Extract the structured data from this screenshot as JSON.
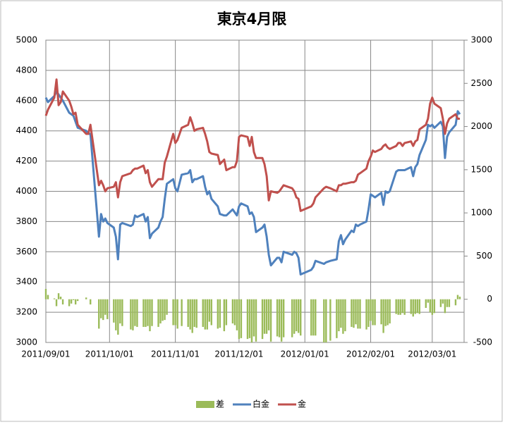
{
  "chart_data": {
    "type": "combo",
    "title": "東京4月限",
    "x": [
      "2011/09/01",
      "2011/09/02",
      "2011/09/05",
      "2011/09/06",
      "2011/09/07",
      "2011/09/08",
      "2011/09/09",
      "2011/09/12",
      "2011/09/13",
      "2011/09/14",
      "2011/09/15",
      "2011/09/16",
      "2011/09/20",
      "2011/09/21",
      "2011/09/22",
      "2011/09/26",
      "2011/09/27",
      "2011/09/28",
      "2011/09/29",
      "2011/09/30",
      "2011/10/03",
      "2011/10/04",
      "2011/10/05",
      "2011/10/06",
      "2011/10/07",
      "2011/10/11",
      "2011/10/12",
      "2011/10/13",
      "2011/10/14",
      "2011/10/17",
      "2011/10/18",
      "2011/10/19",
      "2011/10/20",
      "2011/10/21",
      "2011/10/24",
      "2011/10/25",
      "2011/10/26",
      "2011/10/27",
      "2011/10/28",
      "2011/10/31",
      "2011/11/01",
      "2011/11/02",
      "2011/11/04",
      "2011/11/07",
      "2011/11/08",
      "2011/11/09",
      "2011/11/10",
      "2011/11/11",
      "2011/11/14",
      "2011/11/15",
      "2011/11/16",
      "2011/11/17",
      "2011/11/18",
      "2011/11/21",
      "2011/11/22",
      "2011/11/24",
      "2011/11/25",
      "2011/11/28",
      "2011/11/29",
      "2011/11/30",
      "2011/12/01",
      "2011/12/02",
      "2011/12/05",
      "2011/12/06",
      "2011/12/07",
      "2011/12/08",
      "2011/12/09",
      "2011/12/12",
      "2011/12/13",
      "2011/12/14",
      "2011/12/15",
      "2011/12/16",
      "2011/12/19",
      "2011/12/20",
      "2011/12/21",
      "2011/12/22",
      "2011/12/26",
      "2011/12/27",
      "2011/12/28",
      "2011/12/29",
      "2011/12/30",
      "2012/01/04",
      "2012/01/05",
      "2012/01/06",
      "2012/01/10",
      "2012/01/11",
      "2012/01/13",
      "2012/01/16",
      "2012/01/17",
      "2012/01/18",
      "2012/01/19",
      "2012/01/20",
      "2012/01/23",
      "2012/01/24",
      "2012/01/25",
      "2012/01/26",
      "2012/01/27",
      "2012/01/30",
      "2012/01/31",
      "2012/02/01",
      "2012/02/02",
      "2012/02/03",
      "2012/02/06",
      "2012/02/07",
      "2012/02/08",
      "2012/02/09",
      "2012/02/10",
      "2012/02/13",
      "2012/02/14",
      "2012/02/15",
      "2012/02/16",
      "2012/02/17",
      "2012/02/20",
      "2012/02/21",
      "2012/02/22",
      "2012/02/23",
      "2012/02/24",
      "2012/02/27",
      "2012/02/28",
      "2012/02/29",
      "2012/03/01",
      "2012/03/02",
      "2012/03/05",
      "2012/03/06",
      "2012/03/07",
      "2012/03/08",
      "2012/03/09",
      "2012/03/12",
      "2012/03/13",
      "2012/03/14"
    ],
    "series": [
      {
        "name": "差",
        "type": "bar",
        "axis": "y2",
        "color": "#9bbb59",
        "values": [
          120,
          50,
          10,
          -80,
          70,
          30,
          -60,
          -80,
          -50,
          -10,
          -60,
          -20,
          20,
          0,
          -60,
          -340,
          -220,
          -240,
          -180,
          -230,
          -270,
          -360,
          -410,
          -280,
          -310,
          -350,
          -360,
          -310,
          -320,
          -320,
          -320,
          -310,
          -370,
          -310,
          -320,
          -280,
          -250,
          -240,
          -180,
          -300,
          -300,
          -340,
          -310,
          -320,
          -350,
          -390,
          -320,
          -330,
          -320,
          -350,
          -350,
          -260,
          -300,
          -340,
          -330,
          -370,
          -300,
          -280,
          -300,
          -360,
          -460,
          -450,
          -460,
          -450,
          -500,
          -430,
          -490,
          -460,
          -400,
          -400,
          -360,
          -490,
          -430,
          -440,
          -490,
          -440,
          -440,
          -400,
          -370,
          -390,
          -420,
          -420,
          -420,
          -420,
          -500,
          -500,
          -480,
          -450,
          -370,
          -330,
          -400,
          -370,
          -320,
          -330,
          -290,
          -340,
          -340,
          -350,
          -320,
          -250,
          -300,
          -300,
          -290,
          -390,
          -310,
          -300,
          -280,
          -170,
          -180,
          -180,
          -160,
          -180,
          -170,
          -200,
          -170,
          -160,
          -170,
          -100,
          -40,
          -150,
          -180,
          -160,
          -90,
          -50,
          -160,
          -90,
          -90,
          -70,
          50,
          30
        ]
      },
      {
        "name": "白金",
        "type": "line",
        "color": "#4f81bd",
        "values": [
          4620,
          4590,
          4630,
          4660,
          4640,
          4620,
          4600,
          4520,
          4510,
          4500,
          4460,
          4420,
          4400,
          4380,
          4380,
          3700,
          3850,
          3800,
          3820,
          3790,
          3760,
          3700,
          3550,
          3780,
          3790,
          3770,
          3780,
          3840,
          3830,
          3850,
          3800,
          3830,
          3690,
          3720,
          3760,
          3800,
          3830,
          3950,
          4050,
          4080,
          4020,
          4000,
          4110,
          4120,
          4140,
          4060,
          4080,
          4080,
          4100,
          4030,
          3980,
          4000,
          3950,
          3900,
          3850,
          3840,
          3840,
          3880,
          3860,
          3840,
          3900,
          3920,
          3900,
          3850,
          3860,
          3830,
          3730,
          3760,
          3780,
          3700,
          3580,
          3510,
          3560,
          3560,
          3530,
          3600,
          3580,
          3600,
          3590,
          3560,
          3450,
          3480,
          3500,
          3540,
          3520,
          3530,
          3540,
          3550,
          3670,
          3710,
          3650,
          3680,
          3740,
          3730,
          3780,
          3770,
          3780,
          3800,
          3880,
          3980,
          3970,
          3960,
          3990,
          3910,
          4000,
          3990,
          4000,
          4130,
          4140,
          4140,
          4140,
          4140,
          4160,
          4100,
          4160,
          4180,
          4240,
          4340,
          4440,
          4430,
          4440,
          4420,
          4460,
          4430,
          4220,
          4360,
          4390,
          4440,
          4530,
          4510
        ]
      },
      {
        "name": "金",
        "type": "line",
        "color": "#c0504d",
        "values": [
          4500,
          4540,
          4620,
          4740,
          4570,
          4590,
          4660,
          4600,
          4560,
          4510,
          4520,
          4440,
          4380,
          4380,
          4440,
          4040,
          4070,
          4040,
          4000,
          4020,
          4030,
          4060,
          3960,
          4060,
          4100,
          4120,
          4140,
          4150,
          4150,
          4170,
          4120,
          4140,
          4060,
          4030,
          4080,
          4080,
          4080,
          4190,
          4230,
          4380,
          4320,
          4340,
          4420,
          4440,
          4490,
          4450,
          4400,
          4410,
          4420,
          4380,
          4330,
          4260,
          4250,
          4240,
          4180,
          4210,
          4140,
          4160,
          4160,
          4200,
          4360,
          4370,
          4360,
          4300,
          4360,
          4260,
          4220,
          4220,
          4180,
          4100,
          3940,
          4000,
          3990,
          4000,
          4020,
          4040,
          4020,
          4000,
          3960,
          3950,
          3870,
          3900,
          3920,
          3960,
          4020,
          4030,
          4020,
          4000,
          4040,
          4040,
          4050,
          4050,
          4060,
          4060,
          4070,
          4110,
          4120,
          4150,
          4200,
          4230,
          4270,
          4260,
          4280,
          4300,
          4310,
          4290,
          4280,
          4300,
          4320,
          4320,
          4300,
          4320,
          4330,
          4300,
          4330,
          4340,
          4410,
          4440,
          4480,
          4580,
          4620,
          4580,
          4550,
          4480,
          4380,
          4450,
          4480,
          4510,
          4480,
          4480
        ]
      }
    ],
    "xlim": [
      "2011/09/01",
      "2012/03/16"
    ],
    "xticks": [
      "2011/09/01",
      "2011/10/01",
      "2011/11/01",
      "2011/12/01",
      "2012/01/01",
      "2012/02/01",
      "2012/03/01"
    ],
    "ylim": [
      3000,
      5000
    ],
    "yticks": [
      3000,
      3200,
      3400,
      3600,
      3800,
      4000,
      4200,
      4400,
      4600,
      4800,
      5000
    ],
    "y2lim": [
      -500,
      3000
    ],
    "y2ticks": [
      -500,
      0,
      500,
      1000,
      1500,
      2000,
      2500,
      3000
    ],
    "grid": true,
    "legend": "bottom"
  }
}
